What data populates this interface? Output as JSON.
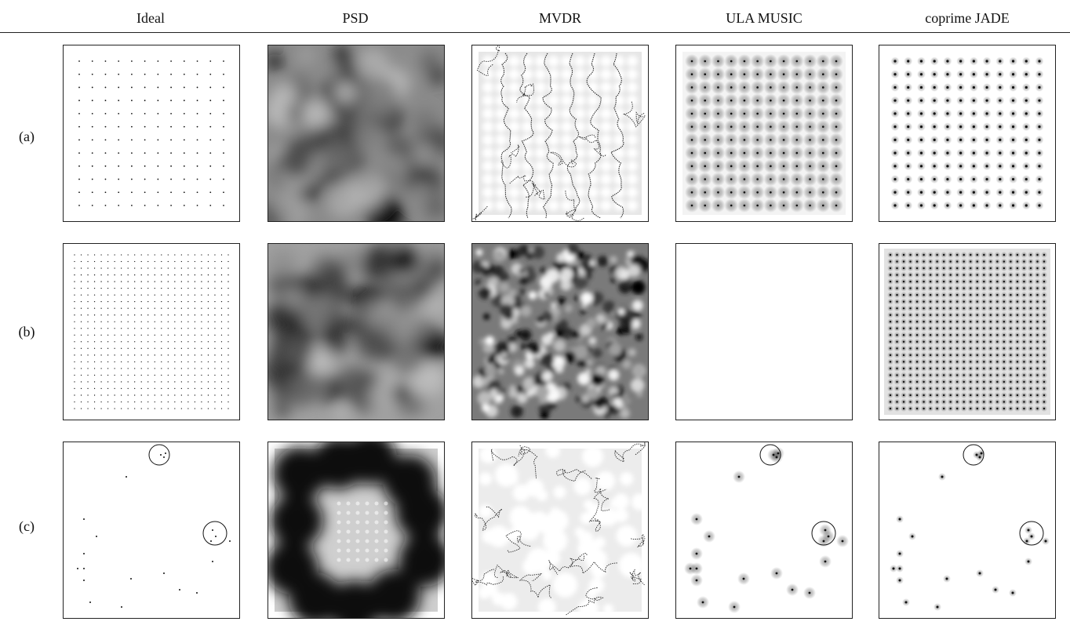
{
  "columns": [
    "Ideal",
    "PSD",
    "MVDR",
    "ULA MUSIC",
    "coprime JADE"
  ],
  "rows": [
    "(a)",
    "(b)",
    "(c)"
  ],
  "colors": {
    "rule": "#222222",
    "background": "#ffffff",
    "dot": "#111111",
    "circle": "#111111"
  }
}
